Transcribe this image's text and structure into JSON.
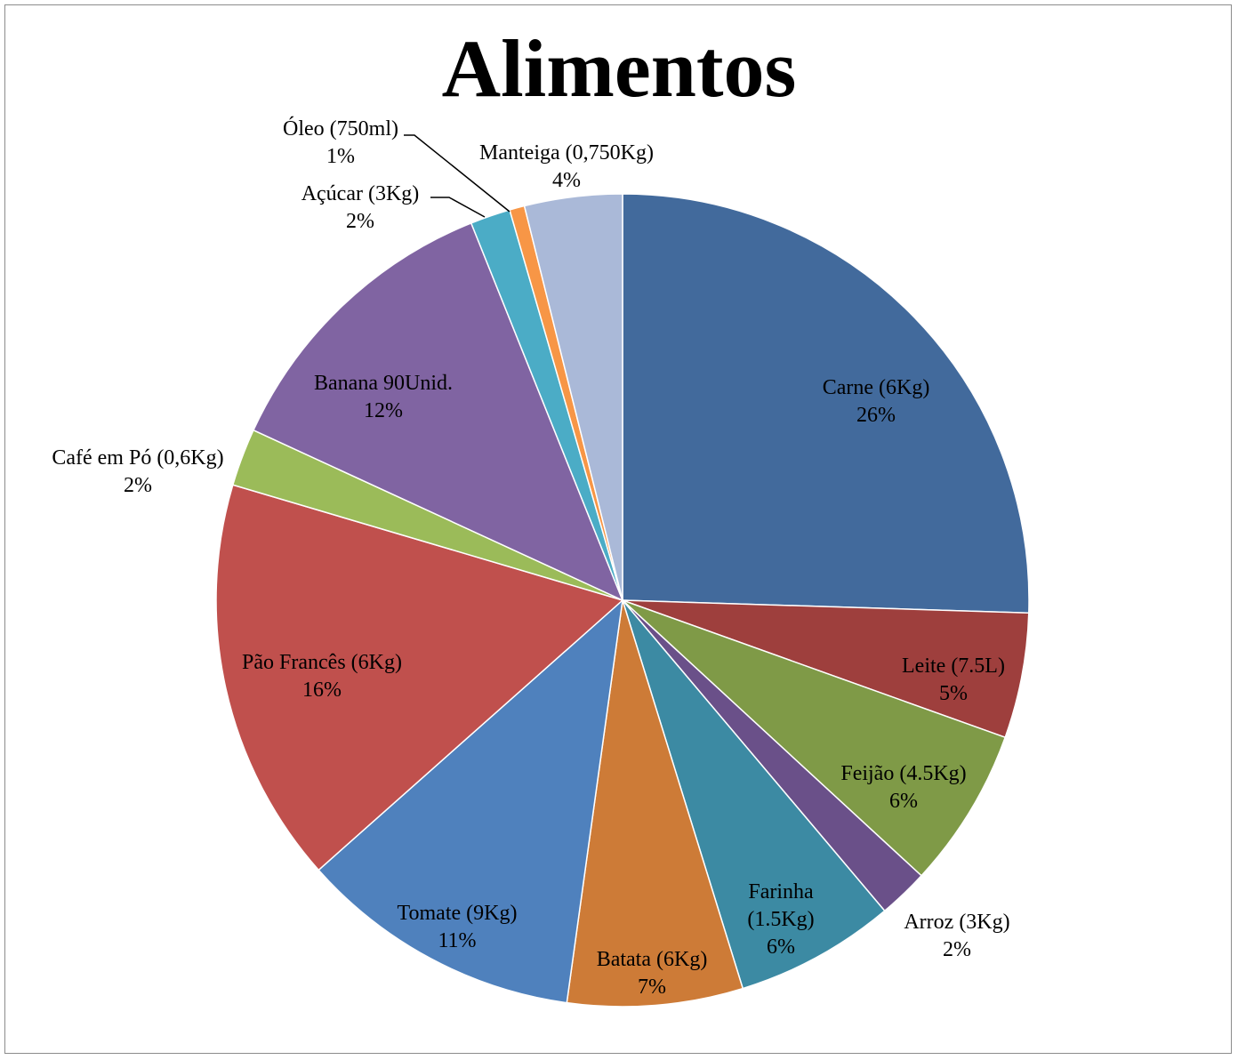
{
  "chart_data": {
    "type": "pie",
    "title": "Alimentos",
    "start_angle_deg": 0,
    "direction": "clockwise",
    "slices": [
      {
        "name": "Carne (6Kg)",
        "pct_label": "26%",
        "value": 25.6,
        "color": "#426a9c"
      },
      {
        "name": "Leite (7.5L)",
        "pct_label": "5%",
        "value": 5.0,
        "color": "#9e3f3d"
      },
      {
        "name": "Feijão (4.5Kg)",
        "pct_label": "6%",
        "value": 6.4,
        "color": "#7f9a47"
      },
      {
        "name": "Arroz (3Kg)",
        "pct_label": "2%",
        "value": 2.0,
        "color": "#6a5089"
      },
      {
        "name": "Farinha (1.5Kg)",
        "pct_label": "6%",
        "value": 6.4,
        "color": "#3c8aa3"
      },
      {
        "name": "Batata (6Kg)",
        "pct_label": "7%",
        "value": 7.0,
        "color": "#cd7b37"
      },
      {
        "name": "Tomate (9Kg)",
        "pct_label": "11%",
        "value": 11.3,
        "color": "#4f81bd"
      },
      {
        "name": "Pão Francês (6Kg)",
        "pct_label": "16%",
        "value": 16.2,
        "color": "#c0504d"
      },
      {
        "name": "Café em Pó (0,6Kg)",
        "pct_label": "2%",
        "value": 2.3,
        "color": "#9bbb59"
      },
      {
        "name": "Banana 90Unid.",
        "pct_label": "12%",
        "value": 12.1,
        "color": "#8064a2"
      },
      {
        "name": "Açúcar (3Kg)",
        "pct_label": "2%",
        "value": 1.6,
        "color": "#4bacc6"
      },
      {
        "name": "Óleo (750ml)",
        "pct_label": "1%",
        "value": 0.6,
        "color": "#f79646"
      },
      {
        "name": "Manteiga (0,750Kg)",
        "pct_label": "4%",
        "value": 3.9,
        "color": "#aab9d8"
      }
    ]
  }
}
